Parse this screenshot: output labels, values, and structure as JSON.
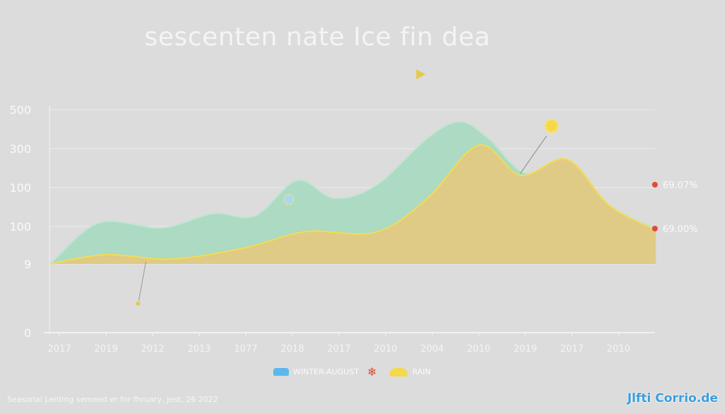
{
  "chart_data": {
    "type": "area",
    "title": "sescenten nate Ice fin dea",
    "y_tick_labels": [
      "500",
      "300",
      "100",
      "100",
      "9",
      "0"
    ],
    "x_tick_labels": [
      "2017",
      "2019",
      "2012",
      "2013",
      "1077",
      "2018",
      "2017",
      "2010",
      "2004",
      "2010",
      "2019",
      "2017",
      "2010"
    ],
    "ylim": [
      0,
      500
    ],
    "grid": true,
    "series": [
      {
        "color": "#a6d9bf",
        "x": [
          -0.2,
          0.85,
          2.2,
          3.3,
          4.2,
          5.1,
          5.9,
          6.8,
          7.9,
          8.6,
          9.2,
          10.0,
          10.9,
          11.8,
          12.8
        ],
        "values": [
          0,
          133,
          117,
          163,
          156,
          271,
          213,
          255,
          408,
          461,
          408,
          294,
          333,
          190,
          115
        ]
      },
      {
        "color": "#e8c87a",
        "x": [
          -0.2,
          1.0,
          2.4,
          4.0,
          5.3,
          6.8,
          7.9,
          9.0,
          9.9,
          10.9,
          11.8,
          12.8
        ],
        "values": [
          0,
          30,
          16,
          53,
          105,
          103,
          213,
          385,
          287,
          339,
          190,
          110
        ]
      }
    ],
    "annotations": [
      "69.07%",
      "69.00%"
    ],
    "legend": {
      "placement": "bottom",
      "items": [
        "WINTER-AUGUST",
        "",
        "RAIN"
      ]
    },
    "colors": {
      "marker": "#e04a3a",
      "sun": "#f5d94a",
      "snow": "#a8d8f0"
    }
  },
  "footer": "Seasonal Lenting semeed er for fhruary, Jest, 26 2022",
  "logo": "Jlfti Corrio.de"
}
